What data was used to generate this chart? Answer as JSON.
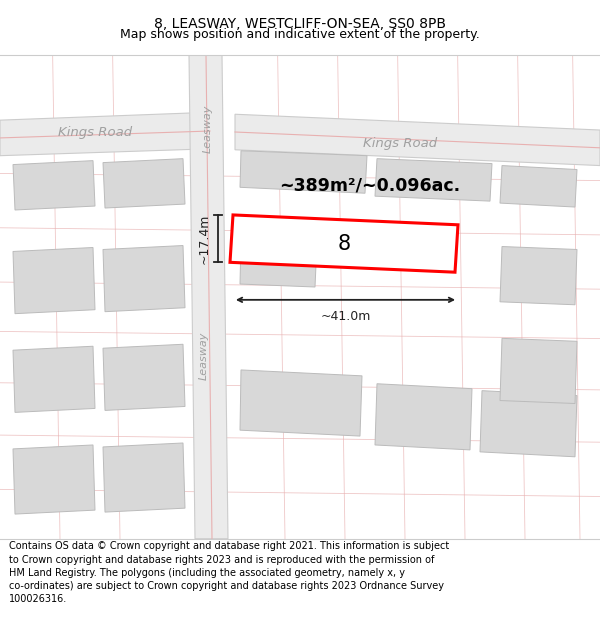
{
  "title": "8, LEASWAY, WESTCLIFF-ON-SEA, SS0 8PB",
  "subtitle": "Map shows position and indicative extent of the property.",
  "footer": "Contains OS data © Crown copyright and database right 2021. This information is subject\nto Crown copyright and database rights 2023 and is reproduced with the permission of\nHM Land Registry. The polygons (including the associated geometry, namely x, y\nco-ordinates) are subject to Crown copyright and database rights 2023 Ordnance Survey\n100026316.",
  "map_bg": "#ffffff",
  "road_fill": "#ebebeb",
  "road_edge": "#cccccc",
  "road_center_color": "#e8b0b0",
  "building_fill": "#d8d8d8",
  "building_edge": "#bbbbbb",
  "highlight_color": "#ff0000",
  "highlight_fill": "#ffffff",
  "label_color": "#a0a0a0",
  "dim_color": "#222222",
  "area_text": "~389m²/~0.096ac.",
  "dim_width": "~41.0m",
  "dim_height": "~17.4m",
  "property_number": "8",
  "road1_label": "Kings Road",
  "road2_label": "Kings Road",
  "road3_label": "Leasway",
  "road4_label": "Leasway",
  "title_fontsize": 10,
  "subtitle_fontsize": 9,
  "footer_fontsize": 7
}
